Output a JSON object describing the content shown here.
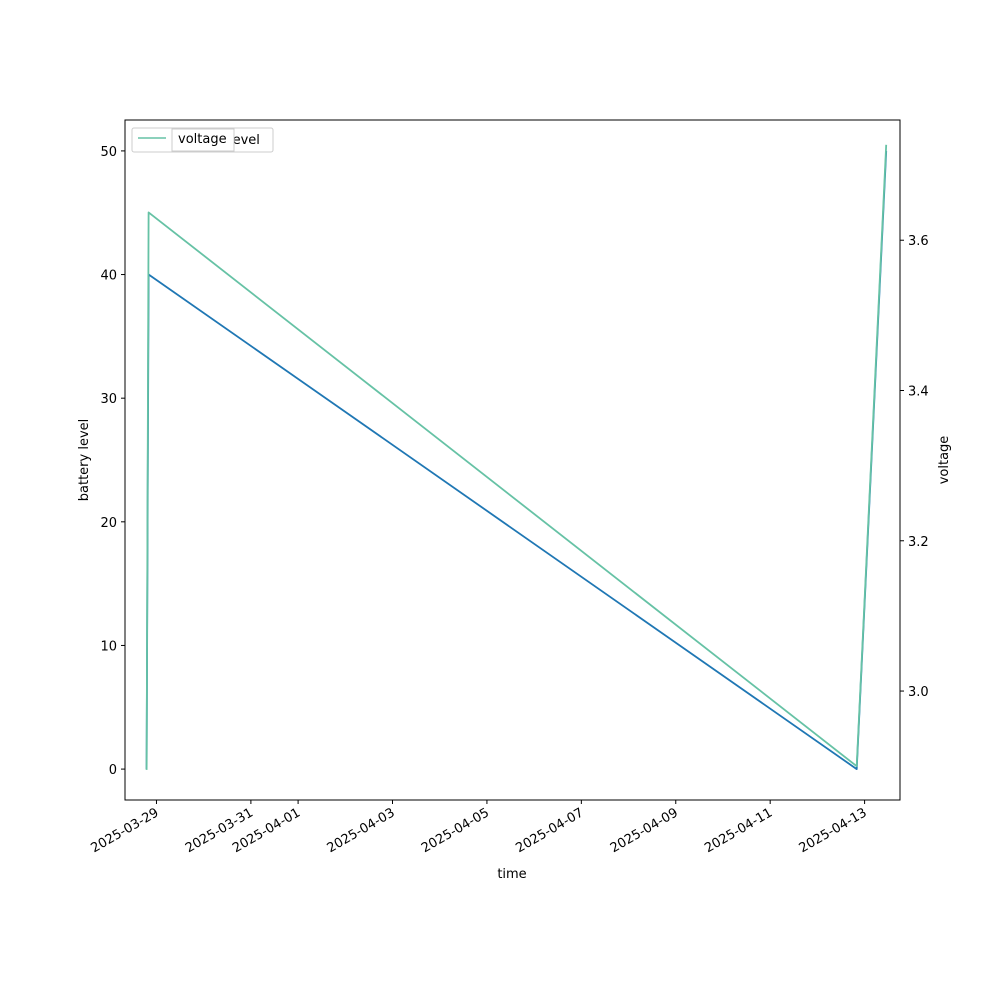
{
  "chart_data": {
    "type": "line",
    "xlabel": "time",
    "ylabel": "battery level",
    "y2label": "voltage",
    "x_ticks": [
      "2025-03-29",
      "2025-03-31",
      "2025-04-01",
      "2025-04-03",
      "2025-04-05",
      "2025-04-07",
      "2025-04-09",
      "2025-04-11",
      "2025-04-13"
    ],
    "y_ticks": [
      "0",
      "10",
      "20",
      "30",
      "40",
      "50"
    ],
    "y2_ticks": [
      "3.0",
      "3.2",
      "3.4",
      "3.6"
    ],
    "xlim": [
      "2025-03-28T08:00",
      "2025-04-13T18:00"
    ],
    "ylim": [
      -2.5,
      52.5
    ],
    "y2lim": [
      2.855,
      3.76
    ],
    "grid": false,
    "legend": {
      "placement": "top-left",
      "entries": [
        "level",
        "voltage"
      ]
    },
    "series": [
      {
        "name": "level",
        "axis": "left",
        "color": "#1f77b4",
        "x": [
          "2025-03-28T19:00",
          "2025-03-28T20:00",
          "2025-04-12T20:00",
          "2025-04-13T11:00"
        ],
        "values": [
          0,
          40,
          0,
          50
        ]
      },
      {
        "name": "voltage",
        "axis": "right",
        "color": "#66c2a5",
        "x": [
          "2025-03-28T19:00",
          "2025-03-28T20:00",
          "2025-04-12T20:00",
          "2025-04-13T11:00"
        ],
        "values": [
          2.895,
          3.637,
          2.9,
          3.727
        ]
      }
    ]
  }
}
